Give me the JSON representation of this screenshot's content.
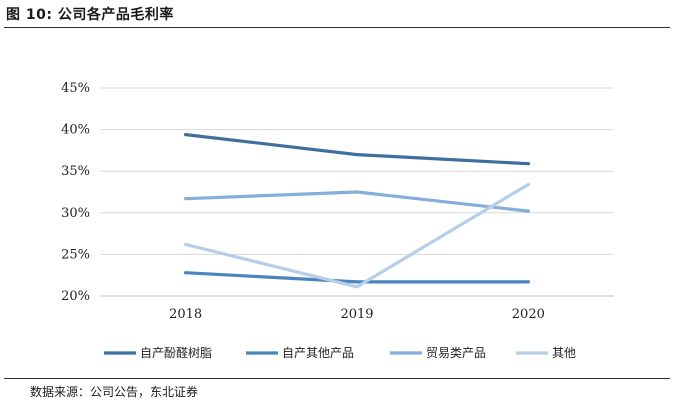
{
  "figure": {
    "title": "图 10:  公司各产品毛利率",
    "source": "数据来源：公司公告，东北证券"
  },
  "chart_data": {
    "type": "line",
    "categories": [
      "2018",
      "2019",
      "2020"
    ],
    "series": [
      {
        "name": "自产酚醛树脂",
        "values": [
          39.4,
          37.0,
          35.9
        ],
        "color": "#3e6f9e"
      },
      {
        "name": "自产其他产品",
        "values": [
          22.8,
          21.7,
          21.7
        ],
        "color": "#4a86bd"
      },
      {
        "name": "贸易类产品",
        "values": [
          31.7,
          32.5,
          30.2
        ],
        "color": "#84aedb"
      },
      {
        "name": "其他",
        "values": [
          26.2,
          21.1,
          33.4
        ],
        "color": "#b7cde8"
      }
    ],
    "yticks": [
      "20%",
      "25%",
      "30%",
      "35%",
      "40%",
      "45%"
    ],
    "ylim": [
      20,
      45
    ],
    "grid": true,
    "legend": "bottom",
    "xlabel": "",
    "ylabel": ""
  }
}
